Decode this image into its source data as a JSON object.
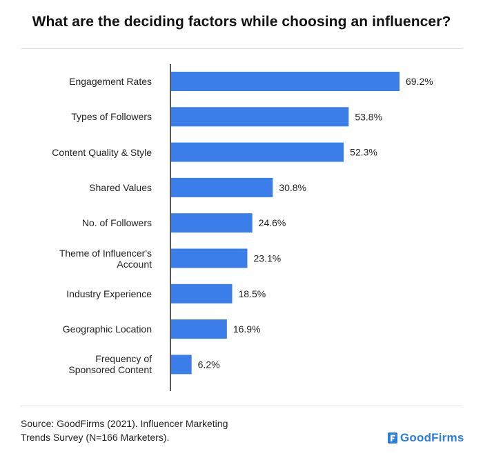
{
  "chart_data": {
    "type": "bar",
    "orientation": "horizontal",
    "title": "What are the deciding factors while choosing an influencer?",
    "categories": [
      "Engagement Rates",
      "Types of Followers",
      "Content Quality & Style",
      "Shared Values",
      "No. of Followers",
      "Theme of Influencer's Account",
      "Industry Experience",
      "Geographic Location",
      "Frequency of Sponsored Content"
    ],
    "category_lines": [
      [
        "Engagement Rates"
      ],
      [
        "Types of Followers"
      ],
      [
        "Content Quality & Style"
      ],
      [
        "Shared Values"
      ],
      [
        "No. of Followers"
      ],
      [
        "Theme of Influencer's",
        "Account"
      ],
      [
        "Industry Experience"
      ],
      [
        "Geographic Location"
      ],
      [
        "Frequency of",
        "Sponsored Content"
      ]
    ],
    "values": [
      69.2,
      53.8,
      52.3,
      30.8,
      24.6,
      23.1,
      18.5,
      16.9,
      6.2
    ],
    "value_labels": [
      "69.2%",
      "53.8%",
      "52.3%",
      "30.8%",
      "24.6%",
      "23.1%",
      "18.5%",
      "16.9%",
      "6.2%"
    ],
    "unit": "%",
    "xlim": [
      0,
      80
    ],
    "grid": false,
    "bar_color": "#3b7de9"
  },
  "footer": {
    "source_line1": "Source: GoodFirms (2021). Influencer Marketing",
    "source_line2": "Trends Survey (N=166 Marketers).",
    "brand": "GoodFirms",
    "brand_color": "#2a7de1"
  }
}
